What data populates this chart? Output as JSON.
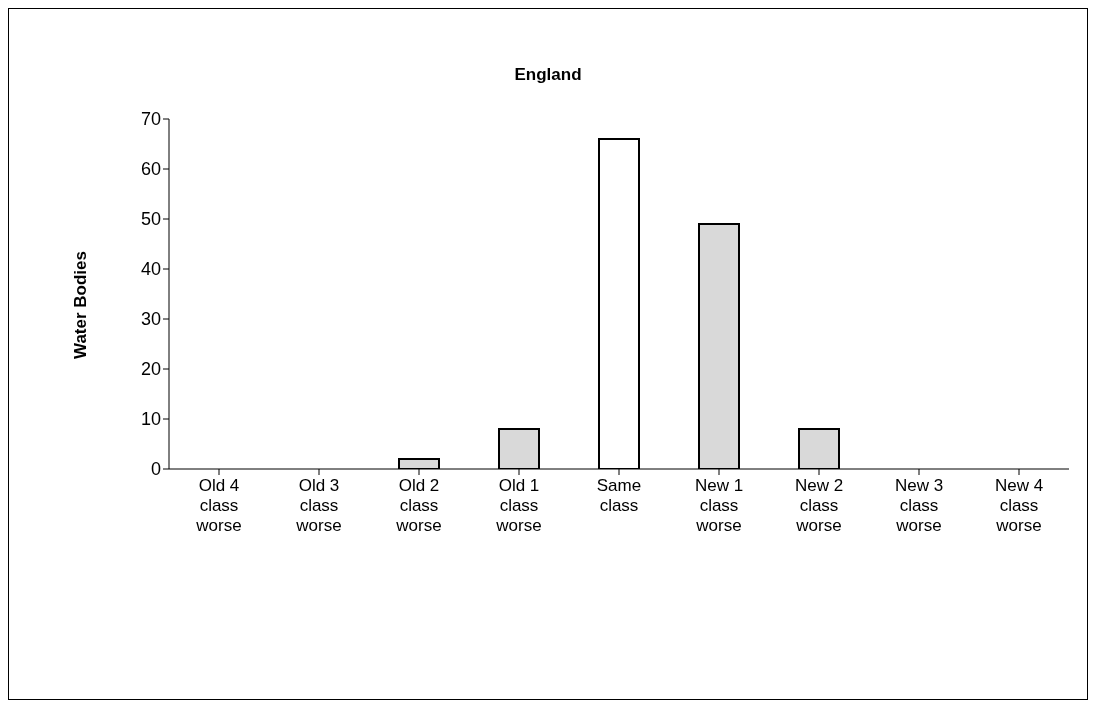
{
  "chart_data": {
    "type": "bar",
    "title": "England",
    "ylabel": "Water Bodies",
    "categories": [
      "Old 4 class worse",
      "Old 3 class worse",
      "Old 2 class worse",
      "Old 1 class worse",
      "Same class",
      "New 1 class worse",
      "New 2 class worse",
      "New 3 class worse",
      "New 4 class worse"
    ],
    "values": [
      0,
      0,
      2,
      8,
      66,
      49,
      8,
      0,
      0
    ],
    "colors": [
      "#d9d9d9",
      "#d9d9d9",
      "#d9d9d9",
      "#d9d9d9",
      "#ffffff",
      "#d9d9d9",
      "#d9d9d9",
      "#d9d9d9",
      "#d9d9d9"
    ],
    "ylim": [
      0,
      70
    ],
    "yticks": [
      0,
      10,
      20,
      30,
      40,
      50,
      60,
      70
    ],
    "grid": false,
    "legend": false
  }
}
